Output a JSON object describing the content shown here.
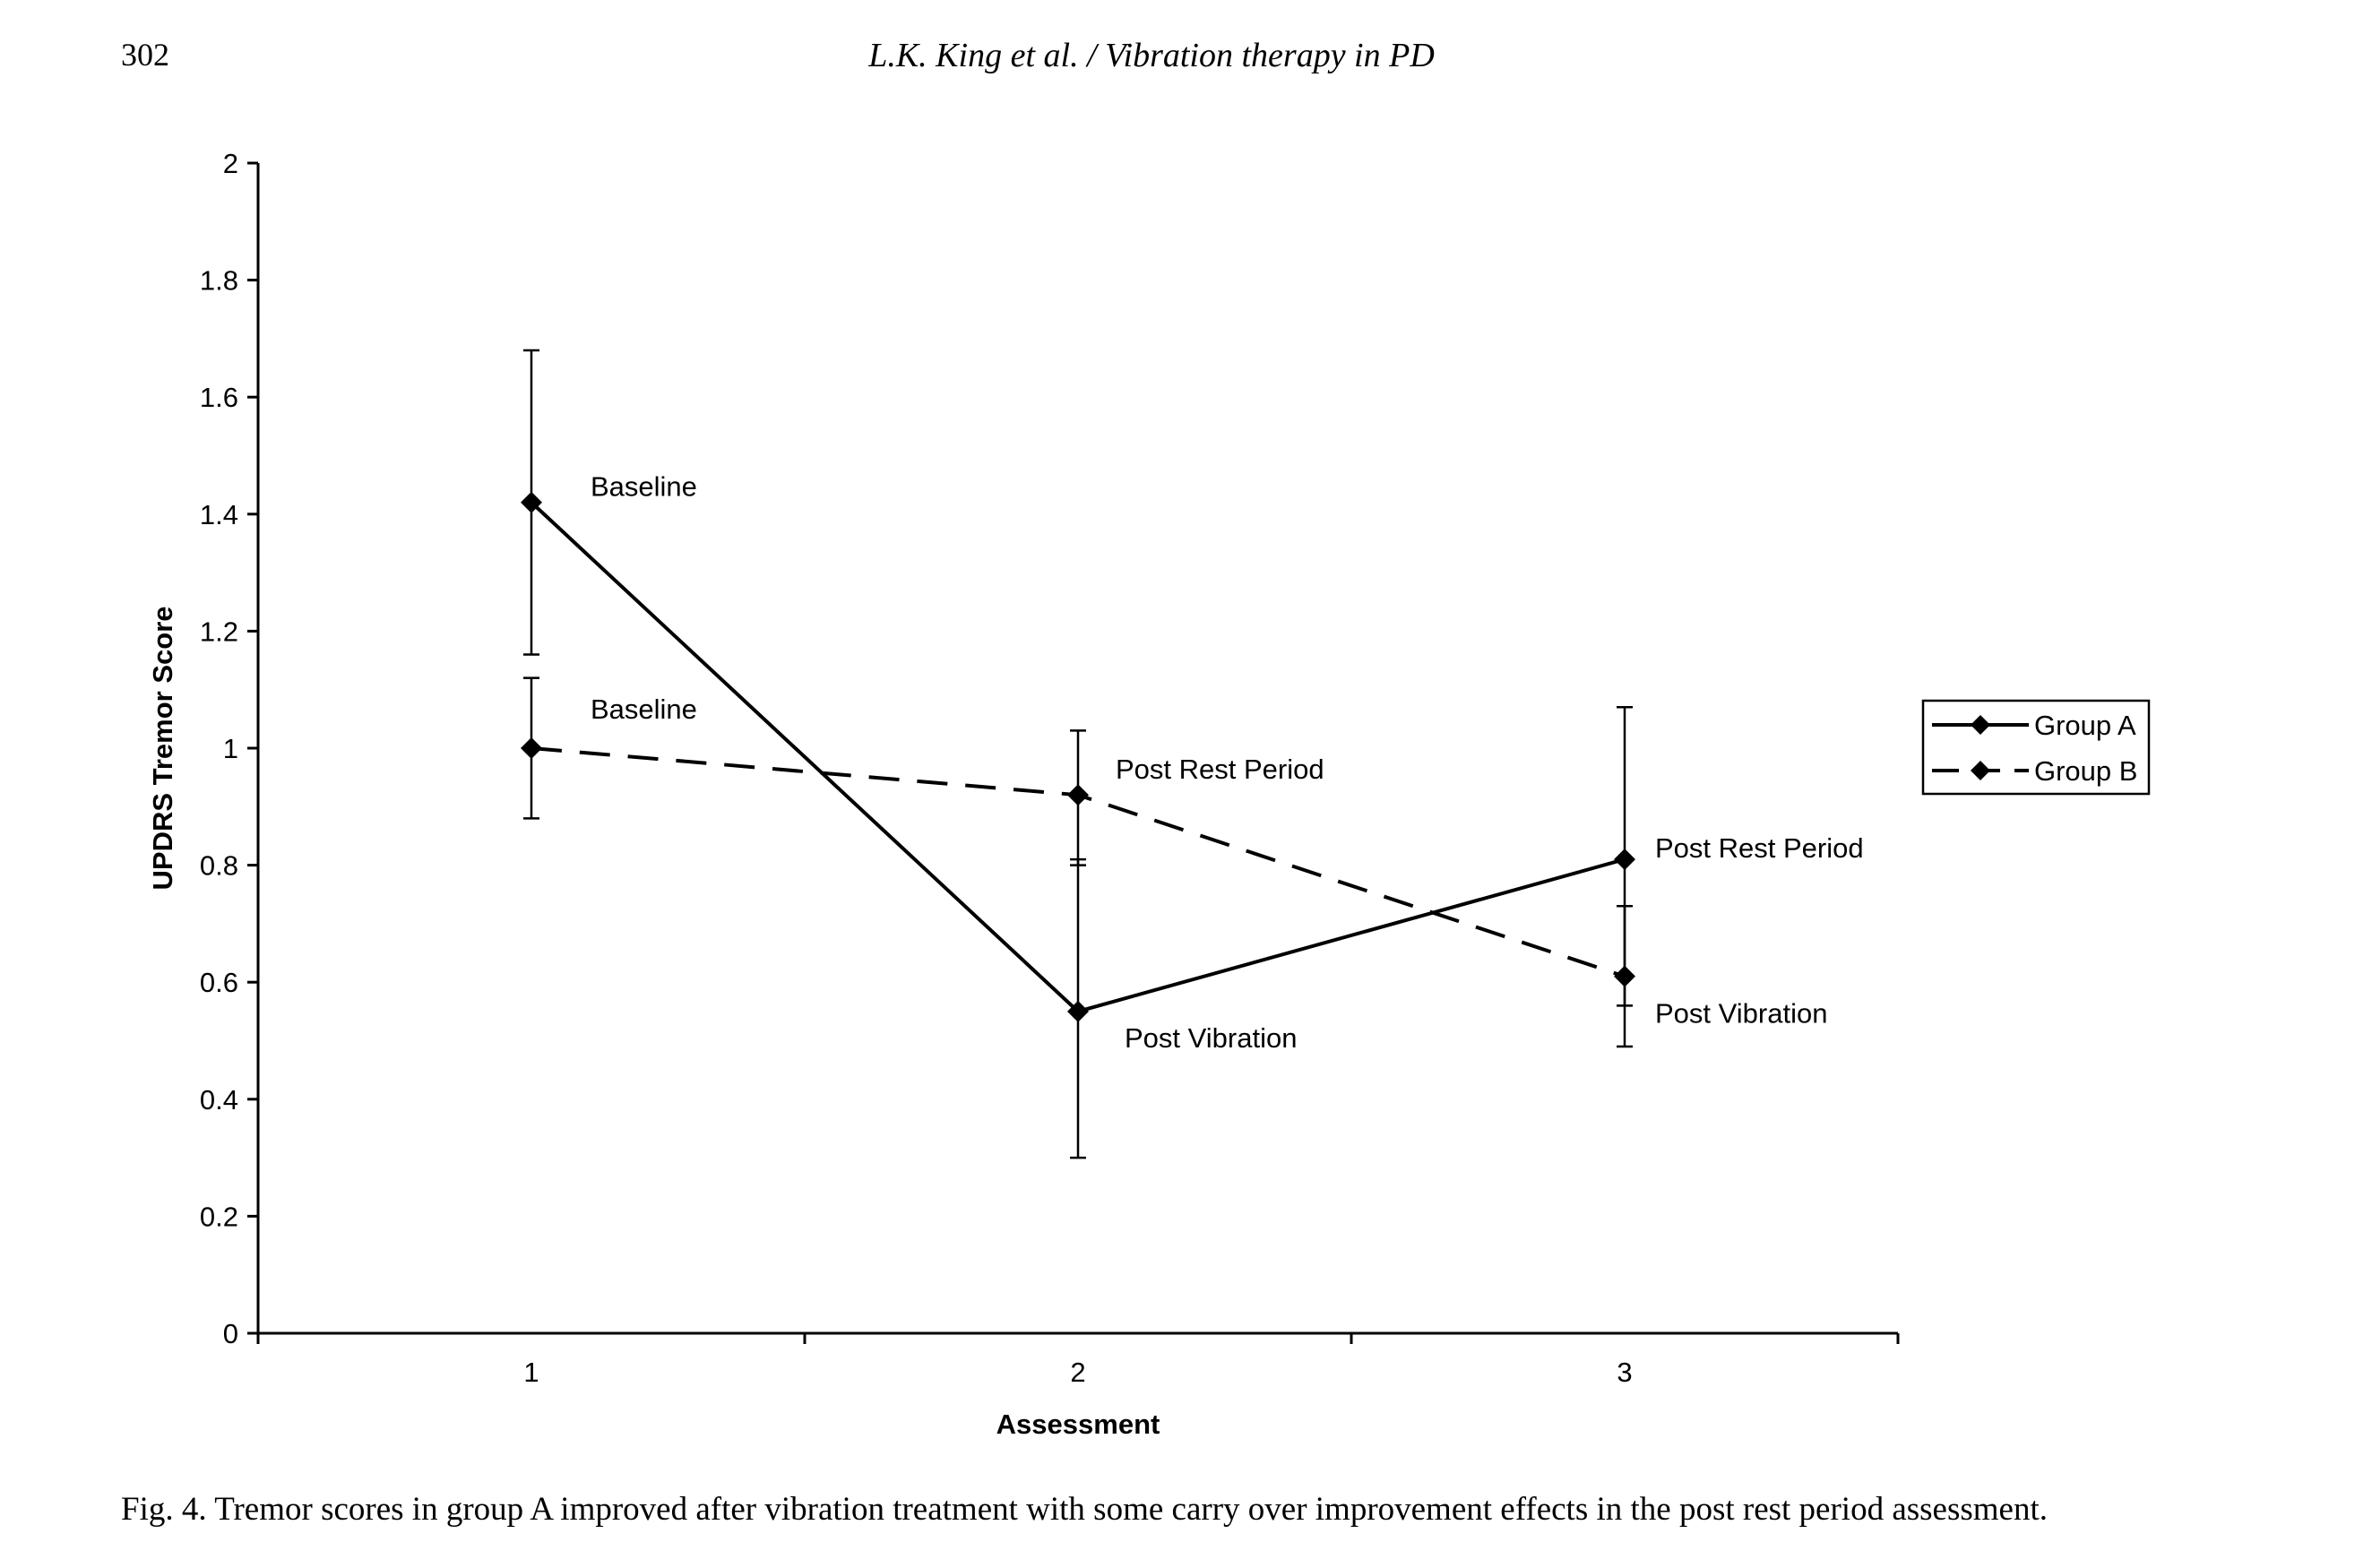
{
  "header": {
    "page_number": "302",
    "running_title": "L.K. King et al. / Vibration therapy in PD"
  },
  "caption": "Fig. 4. Tremor scores in group A improved after vibration treatment with some carry over improvement effects in the post rest period assessment.",
  "chart_data": {
    "type": "line",
    "title": "",
    "xlabel": "Assessment",
    "ylabel": "UPDRS Tremor Score",
    "categories": [
      "1",
      "2",
      "3"
    ],
    "x": [
      1,
      2,
      3
    ],
    "xlim": [
      0.5,
      3.5
    ],
    "ylim": [
      0,
      2
    ],
    "y_ticks": [
      "0",
      "0.2",
      "0.4",
      "0.6",
      "0.8",
      "1",
      "1.2",
      "1.4",
      "1.6",
      "1.8",
      "2"
    ],
    "grid": false,
    "legend_position": "right",
    "series": [
      {
        "name": "Group A",
        "line_style": "solid",
        "marker": "diamond",
        "color": "#000000",
        "values": [
          1.42,
          0.55,
          0.81
        ],
        "error_high": [
          1.68,
          0.81,
          1.07
        ],
        "error_low": [
          1.16,
          0.3,
          0.56
        ],
        "point_labels": [
          "Baseline",
          "Post Vibration",
          "Post Rest Period"
        ]
      },
      {
        "name": "Group B",
        "line_style": "dashed",
        "marker": "diamond",
        "color": "#000000",
        "values": [
          1.0,
          0.92,
          0.61
        ],
        "error_high": [
          1.12,
          1.03,
          0.73
        ],
        "error_low": [
          0.88,
          0.8,
          0.49
        ],
        "point_labels": [
          "Baseline",
          "Post Rest Period",
          "Post Vibration"
        ]
      }
    ]
  }
}
